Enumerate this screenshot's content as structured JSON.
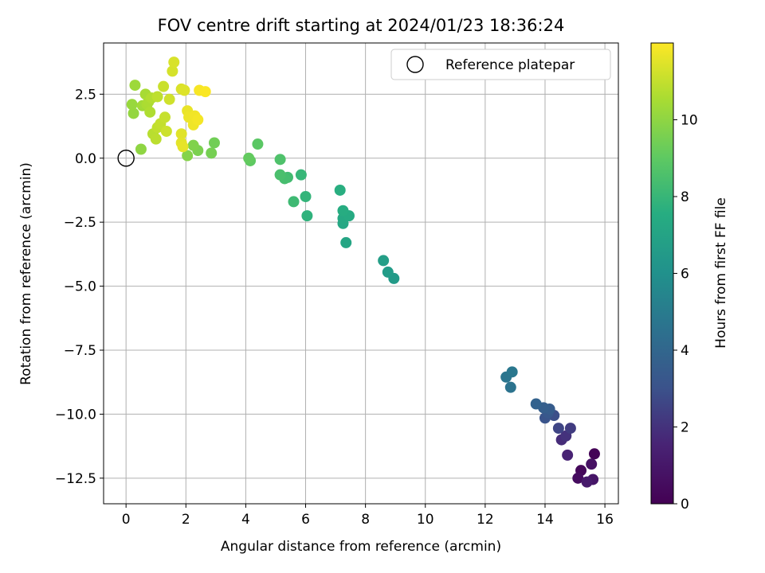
{
  "chart_data": {
    "type": "scatter",
    "title": "FOV centre drift starting at 2024/01/23 18:36:24",
    "xlabel": "Angular distance from reference (arcmin)",
    "ylabel": "Rotation from reference (arcmin)",
    "xlim": [
      -0.75,
      16.45
    ],
    "ylim": [
      -13.5,
      4.5
    ],
    "x_ticks": [
      0,
      2,
      4,
      6,
      8,
      10,
      12,
      14,
      16
    ],
    "y_ticks": [
      2.5,
      0.0,
      -2.5,
      -5.0,
      -7.5,
      -10.0,
      -12.5
    ],
    "grid": true,
    "legend": {
      "position": "top-right",
      "entries": [
        "Reference platepar"
      ]
    },
    "reference_point": {
      "x": 0,
      "y": 0,
      "label": "Reference platepar",
      "marker": "open-circle"
    },
    "colorbar": {
      "label": "Hours from first FF file",
      "min": 0,
      "max": 12,
      "ticks": [
        0,
        2,
        4,
        6,
        8,
        10
      ],
      "colormap": "viridis"
    },
    "points": [
      {
        "x": 15.65,
        "y": -11.55,
        "h": 0.1
      },
      {
        "x": 15.2,
        "y": -12.2,
        "h": 0.3
      },
      {
        "x": 15.1,
        "y": -12.5,
        "h": 0.5
      },
      {
        "x": 15.55,
        "y": -11.95,
        "h": 0.7
      },
      {
        "x": 15.6,
        "y": -12.55,
        "h": 0.9
      },
      {
        "x": 15.4,
        "y": -12.65,
        "h": 1.1
      },
      {
        "x": 14.75,
        "y": -11.6,
        "h": 1.5
      },
      {
        "x": 14.55,
        "y": -11.0,
        "h": 1.8
      },
      {
        "x": 14.7,
        "y": -10.85,
        "h": 2.0
      },
      {
        "x": 14.85,
        "y": -10.55,
        "h": 2.3
      },
      {
        "x": 14.45,
        "y": -10.55,
        "h": 2.6
      },
      {
        "x": 14.3,
        "y": -10.05,
        "h": 2.9
      },
      {
        "x": 14.0,
        "y": -10.15,
        "h": 3.1
      },
      {
        "x": 14.1,
        "y": -9.95,
        "h": 3.3
      },
      {
        "x": 14.15,
        "y": -9.8,
        "h": 3.5
      },
      {
        "x": 13.95,
        "y": -9.75,
        "h": 3.6
      },
      {
        "x": 13.7,
        "y": -9.6,
        "h": 3.8
      },
      {
        "x": 12.85,
        "y": -8.95,
        "h": 4.6
      },
      {
        "x": 12.7,
        "y": -8.55,
        "h": 4.7
      },
      {
        "x": 12.9,
        "y": -8.35,
        "h": 4.8
      },
      {
        "x": 8.95,
        "y": -4.7,
        "h": 6.5
      },
      {
        "x": 8.75,
        "y": -4.45,
        "h": 6.6
      },
      {
        "x": 8.6,
        "y": -4.0,
        "h": 6.7
      },
      {
        "x": 7.35,
        "y": -3.3,
        "h": 7.1
      },
      {
        "x": 7.25,
        "y": -2.55,
        "h": 7.2
      },
      {
        "x": 7.25,
        "y": -2.35,
        "h": 7.3
      },
      {
        "x": 7.45,
        "y": -2.25,
        "h": 7.4
      },
      {
        "x": 7.25,
        "y": -2.05,
        "h": 7.5
      },
      {
        "x": 7.15,
        "y": -1.25,
        "h": 7.6
      },
      {
        "x": 6.05,
        "y": -2.25,
        "h": 7.8
      },
      {
        "x": 6.0,
        "y": -1.5,
        "h": 7.9
      },
      {
        "x": 5.85,
        "y": -0.65,
        "h": 8.0
      },
      {
        "x": 5.6,
        "y": -1.7,
        "h": 8.2
      },
      {
        "x": 5.4,
        "y": -0.75,
        "h": 8.3
      },
      {
        "x": 5.3,
        "y": -0.8,
        "h": 8.4
      },
      {
        "x": 5.15,
        "y": -0.65,
        "h": 8.5
      },
      {
        "x": 5.15,
        "y": -0.05,
        "h": 8.6
      },
      {
        "x": 4.4,
        "y": 0.55,
        "h": 8.9
      },
      {
        "x": 4.15,
        "y": -0.1,
        "h": 9.0
      },
      {
        "x": 4.1,
        "y": 0.0,
        "h": 9.1
      },
      {
        "x": 2.95,
        "y": 0.6,
        "h": 9.4
      },
      {
        "x": 2.85,
        "y": 0.2,
        "h": 9.5
      },
      {
        "x": 2.4,
        "y": 0.3,
        "h": 9.6
      },
      {
        "x": 2.25,
        "y": 0.5,
        "h": 9.7
      },
      {
        "x": 2.05,
        "y": 0.1,
        "h": 9.8
      },
      {
        "x": 0.5,
        "y": 0.35,
        "h": 10.0
      },
      {
        "x": 0.25,
        "y": 1.75,
        "h": 10.1
      },
      {
        "x": 0.2,
        "y": 2.1,
        "h": 10.2
      },
      {
        "x": 0.3,
        "y": 2.85,
        "h": 10.3
      },
      {
        "x": 0.55,
        "y": 2.05,
        "h": 10.4
      },
      {
        "x": 0.65,
        "y": 2.5,
        "h": 10.5
      },
      {
        "x": 0.7,
        "y": 2.1,
        "h": 10.55
      },
      {
        "x": 0.75,
        "y": 2.2,
        "h": 10.6
      },
      {
        "x": 0.8,
        "y": 1.8,
        "h": 10.65
      },
      {
        "x": 0.85,
        "y": 2.35,
        "h": 10.7
      },
      {
        "x": 0.9,
        "y": 0.95,
        "h": 10.8
      },
      {
        "x": 1.0,
        "y": 0.75,
        "h": 10.85
      },
      {
        "x": 1.05,
        "y": 2.4,
        "h": 10.9
      },
      {
        "x": 1.05,
        "y": 1.2,
        "h": 10.95
      },
      {
        "x": 1.15,
        "y": 1.35,
        "h": 11.0
      },
      {
        "x": 1.3,
        "y": 1.6,
        "h": 11.05
      },
      {
        "x": 1.25,
        "y": 2.8,
        "h": 11.1
      },
      {
        "x": 1.35,
        "y": 1.05,
        "h": 11.15
      },
      {
        "x": 1.45,
        "y": 2.3,
        "h": 11.2
      },
      {
        "x": 1.55,
        "y": 3.4,
        "h": 11.3
      },
      {
        "x": 1.6,
        "y": 3.75,
        "h": 11.35
      },
      {
        "x": 1.85,
        "y": 2.7,
        "h": 11.4
      },
      {
        "x": 1.95,
        "y": 2.65,
        "h": 11.45
      },
      {
        "x": 1.85,
        "y": 0.95,
        "h": 11.5
      },
      {
        "x": 1.85,
        "y": 0.6,
        "h": 11.55
      },
      {
        "x": 1.9,
        "y": 0.45,
        "h": 11.6
      },
      {
        "x": 2.05,
        "y": 1.85,
        "h": 11.65
      },
      {
        "x": 2.1,
        "y": 1.6,
        "h": 11.7
      },
      {
        "x": 2.25,
        "y": 1.3,
        "h": 11.75
      },
      {
        "x": 2.3,
        "y": 1.65,
        "h": 11.8
      },
      {
        "x": 2.4,
        "y": 1.5,
        "h": 11.85
      },
      {
        "x": 2.45,
        "y": 2.65,
        "h": 11.9
      },
      {
        "x": 2.65,
        "y": 2.6,
        "h": 11.95
      }
    ]
  }
}
